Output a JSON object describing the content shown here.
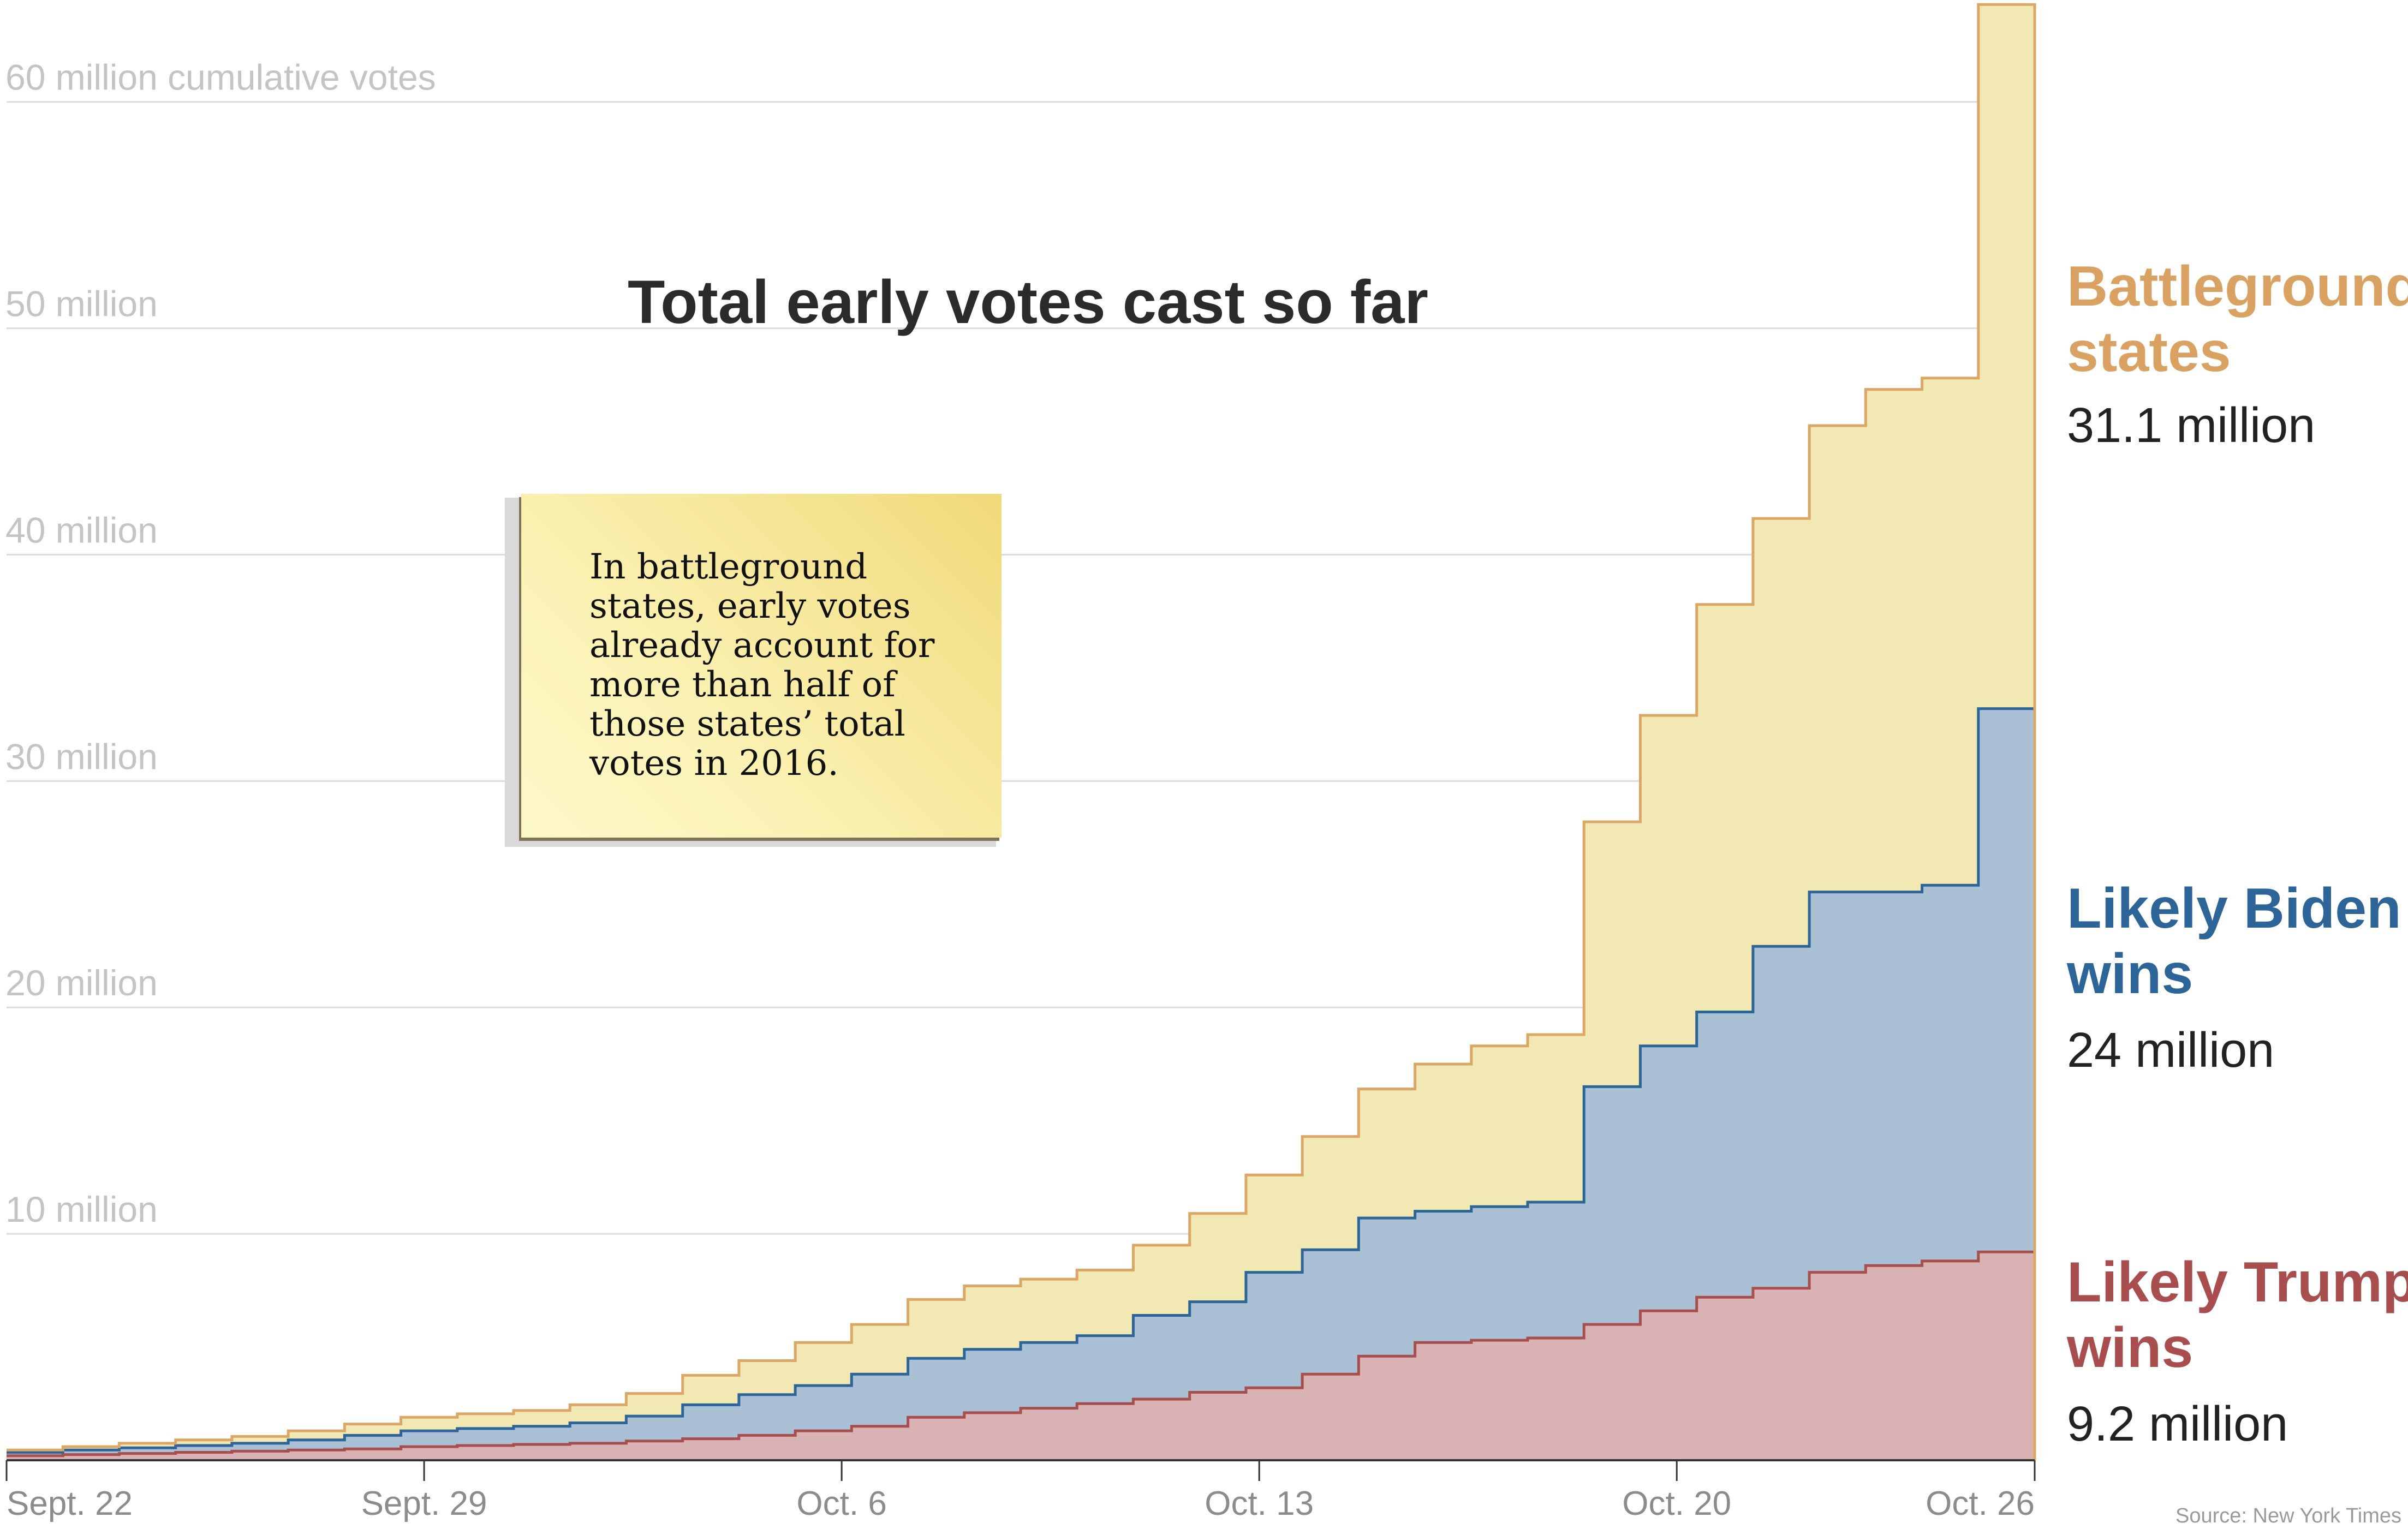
{
  "chart_data": {
    "type": "area",
    "title": "Total early votes cast so far",
    "ylabel": "60 million cumulative votes",
    "ylim": [
      0,
      64.5
    ],
    "yticks": [
      {
        "value": 10,
        "label": "10 million"
      },
      {
        "value": 20,
        "label": "20 million"
      },
      {
        "value": 30,
        "label": "30 million"
      },
      {
        "value": 40,
        "label": "40 million"
      },
      {
        "value": 50,
        "label": "50 million"
      },
      {
        "value": 60,
        "label": "60 million cumulative votes"
      }
    ],
    "xticks": [
      {
        "day": 0,
        "label": "Sept. 22"
      },
      {
        "day": 7,
        "label": "Sept. 29"
      },
      {
        "day": 14,
        "label": "Oct. 6"
      },
      {
        "day": 21,
        "label": "Oct. 13"
      },
      {
        "day": 28,
        "label": "Oct. 20"
      },
      {
        "day": 34,
        "label": "Oct. 26"
      }
    ],
    "x_domain": [
      0,
      34
    ],
    "series": [
      {
        "key": "trump",
        "name": "Likely Trump wins",
        "total_label": "9.2 million",
        "color": "#a84e4e",
        "fill": "#d9b3b3",
        "values": [
          0.2,
          0.25,
          0.3,
          0.35,
          0.4,
          0.45,
          0.5,
          0.6,
          0.65,
          0.7,
          0.75,
          0.85,
          0.95,
          1.1,
          1.3,
          1.5,
          1.9,
          2.1,
          2.3,
          2.5,
          2.7,
          3.0,
          3.2,
          3.8,
          4.6,
          5.2,
          5.3,
          5.4,
          6.0,
          6.6,
          7.2,
          7.6,
          8.3,
          8.6,
          8.8,
          9.2
        ]
      },
      {
        "key": "biden",
        "name": "Likely Biden wins",
        "total_label": "24 million",
        "color": "#2d6598",
        "fill": "#a9c0d5",
        "values": [
          0.15,
          0.2,
          0.25,
          0.3,
          0.35,
          0.45,
          0.6,
          0.7,
          0.75,
          0.8,
          0.9,
          1.1,
          1.5,
          1.8,
          2.0,
          2.3,
          2.6,
          2.8,
          2.9,
          3.0,
          3.7,
          4.0,
          5.1,
          5.5,
          6.1,
          5.8,
          5.9,
          6.0,
          10.5,
          11.7,
          12.6,
          15.1,
          16.8,
          16.5,
          16.6,
          24.0
        ]
      },
      {
        "key": "battleground",
        "name": "Battleground states",
        "total_label": "31.1 million",
        "color": "#dba766",
        "fill": "#f2e8b3",
        "values": [
          0.1,
          0.15,
          0.2,
          0.25,
          0.3,
          0.4,
          0.5,
          0.6,
          0.65,
          0.7,
          0.8,
          1.0,
          1.3,
          1.5,
          1.9,
          2.2,
          2.6,
          2.8,
          2.8,
          2.9,
          3.1,
          3.9,
          4.3,
          5.0,
          5.7,
          6.5,
          7.1,
          7.4,
          11.7,
          14.6,
          18.0,
          18.9,
          20.6,
          22.2,
          22.4,
          31.1
        ]
      }
    ],
    "annotation": "In battleground states, early votes\nalready account for\nmore than half of\nthose states’ total\nvotes in 2016.",
    "annotation_lines": [
      "In battleground",
      "states, early votes",
      "already account for",
      "more than half of",
      "those states’ total",
      "votes in 2016."
    ],
    "source": "Source: New York Times",
    "grid": true,
    "legend": "right"
  }
}
